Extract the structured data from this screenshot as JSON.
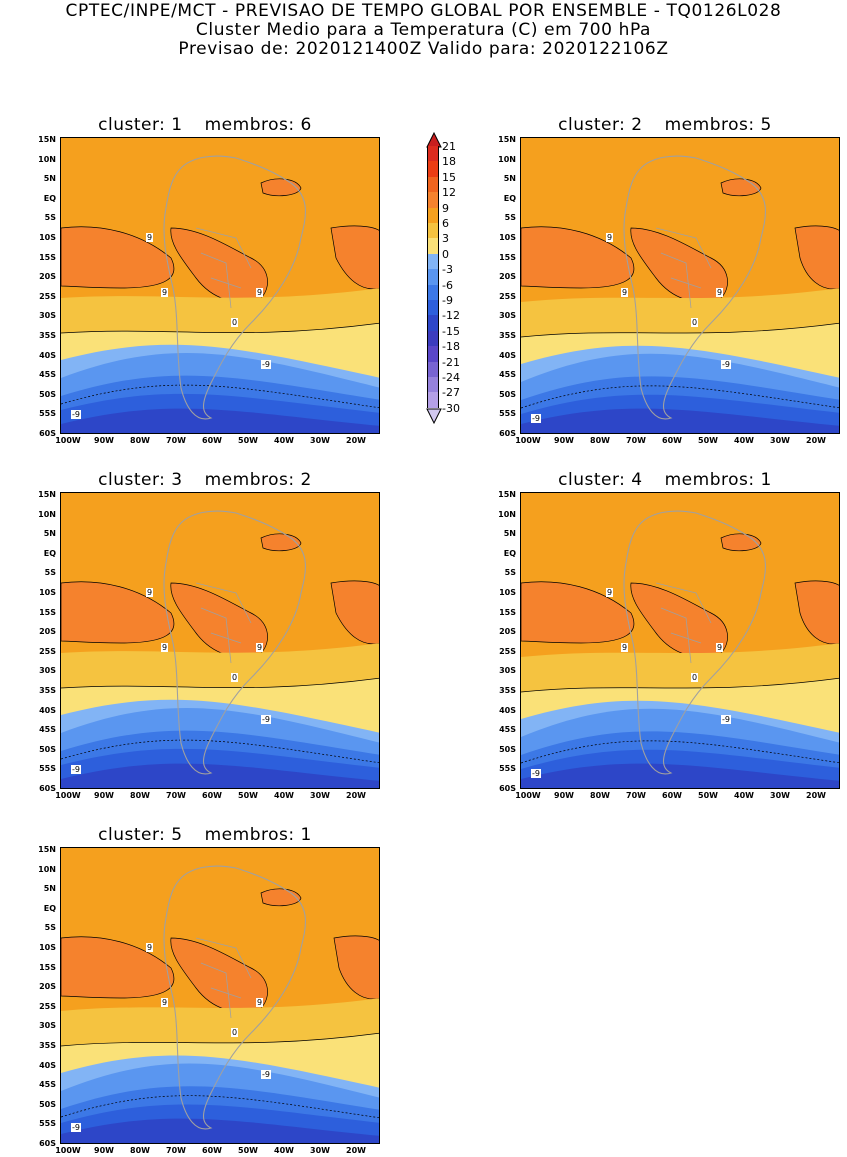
{
  "header": {
    "line1": "CPTEC/INPE/MCT - PREVISAO DE TEMPO GLOBAL POR ENSEMBLE - TQ0126L028",
    "line2": "Cluster Medio para a Temperatura (C) em 700 hPa",
    "line3": "Previsao de: 2020121400Z   Valido para: 2020122106Z"
  },
  "axes": {
    "y_ticks": [
      "15N",
      "10N",
      "5N",
      "EQ",
      "5S",
      "10S",
      "15S",
      "20S",
      "25S",
      "30S",
      "35S",
      "40S",
      "45S",
      "50S",
      "55S",
      "60S"
    ],
    "x_ticks": [
      "100W",
      "90W",
      "80W",
      "70W",
      "60W",
      "50W",
      "40W",
      "30W",
      "20W"
    ]
  },
  "colorbar": {
    "labels": [
      "21",
      "18",
      "15",
      "12",
      "9",
      "6",
      "3",
      "0",
      "-3",
      "-6",
      "-9",
      "-12",
      "-15",
      "-18",
      "-21",
      "-24",
      "-27",
      "-30"
    ],
    "colors": [
      "#c81e1e",
      "#dc2b1e",
      "#eb3d14",
      "#f0641e",
      "#f5822d",
      "#f5a01e",
      "#f5c340",
      "#fae178",
      "#82b4f5",
      "#5a96f0",
      "#3c78e6",
      "#2d5fdc",
      "#2d46c8",
      "#3c3cbe",
      "#5a46c8",
      "#7864d2",
      "#9682dc",
      "#b4a0e6",
      "#d2c8f0"
    ]
  },
  "contour_labels": {
    "warm": "9",
    "zero": "0",
    "cold": "-9"
  },
  "panels": [
    {
      "cluster_label": "cluster:",
      "cluster": "1",
      "members_label": "membros:",
      "members": "6"
    },
    {
      "cluster_label": "cluster:",
      "cluster": "2",
      "members_label": "membros:",
      "members": "5"
    },
    {
      "cluster_label": "cluster:",
      "cluster": "3",
      "members_label": "membros:",
      "members": "2"
    },
    {
      "cluster_label": "cluster:",
      "cluster": "4",
      "members_label": "membros:",
      "members": "1"
    },
    {
      "cluster_label": "cluster:",
      "cluster": "5",
      "members_label": "membros:",
      "members": "1"
    }
  ]
}
